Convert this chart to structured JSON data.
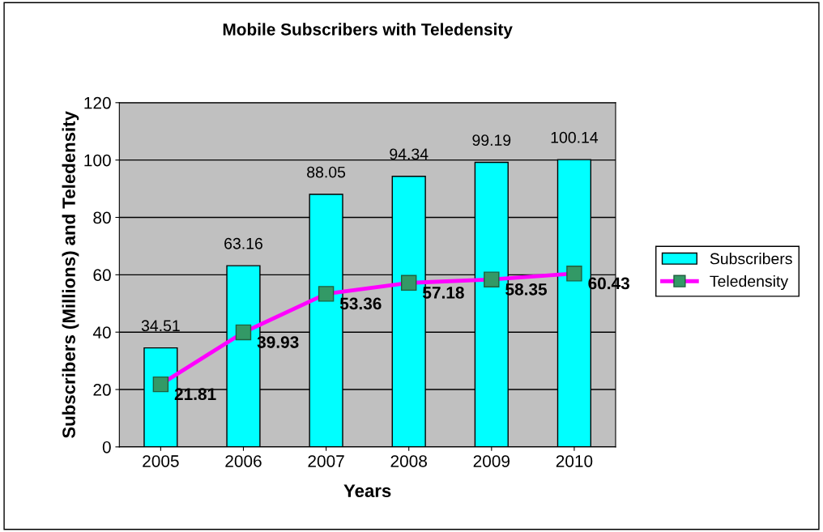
{
  "chart_data": {
    "type": "bar",
    "title": "Mobile Subscribers with Teledensity",
    "xlabel": "Years",
    "ylabel": "Subscribers (Millions) and Teledensity",
    "categories": [
      "2005",
      "2006",
      "2007",
      "2008",
      "2009",
      "2010"
    ],
    "series": [
      {
        "name": "Subscribers",
        "color": "#00ffff",
        "values": [
          34.51,
          63.16,
          88.05,
          94.34,
          99.19,
          100.14
        ]
      },
      {
        "name": "Teledensity",
        "type": "line",
        "color": "#ff00ff",
        "marker": "square",
        "values": [
          21.81,
          39.93,
          53.36,
          57.18,
          58.35,
          60.43
        ]
      }
    ],
    "ylim": [
      0,
      120
    ],
    "yticks": [
      0,
      20,
      40,
      60,
      80,
      100,
      120
    ],
    "grid": "y",
    "legend": "right",
    "data_labels": true
  }
}
